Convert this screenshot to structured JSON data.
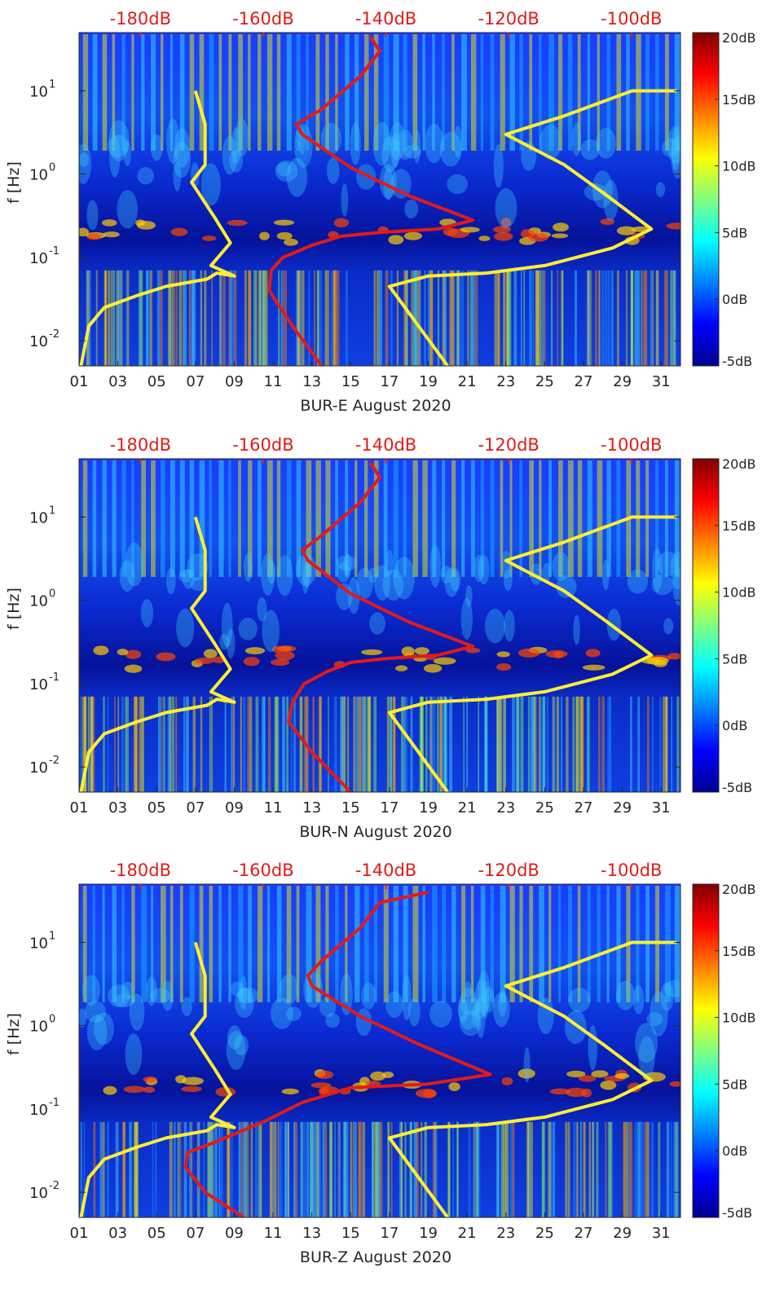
{
  "colors": {
    "background_low": "#00008f",
    "trace_yellow": "#ffee33",
    "trace_red": "#e01b1b",
    "top_label_red": "#e01b1b"
  },
  "chart_data": [
    {
      "type": "heatmap",
      "title": "",
      "xlabel": "BUR-E August 2020",
      "ylabel": "f [Hz]",
      "xlim": [
        1,
        32
      ],
      "ylim": [
        0.005,
        50
      ],
      "yscale": "log",
      "x_ticks": [
        "01",
        "03",
        "05",
        "07",
        "09",
        "11",
        "13",
        "15",
        "17",
        "19",
        "21",
        "23",
        "25",
        "27",
        "29",
        "31"
      ],
      "x_tick_values": [
        1,
        3,
        5,
        7,
        9,
        11,
        13,
        15,
        17,
        19,
        21,
        23,
        25,
        27,
        29,
        31
      ],
      "y_ticks": [
        {
          "label_base": "10",
          "label_exp": "1",
          "value": 10
        },
        {
          "label_base": "10",
          "label_exp": "0",
          "value": 1
        },
        {
          "label_base": "10",
          "label_exp": "-1",
          "value": 0.1
        },
        {
          "label_base": "10",
          "label_exp": "-2",
          "value": 0.01
        }
      ],
      "top_axis_ticks": [
        "-180dB",
        "-160dB",
        "-140dB",
        "-120dB",
        "-100dB"
      ],
      "top_axis_values": [
        -180,
        -160,
        -140,
        -120,
        -100
      ],
      "top_axis_lim": [
        -190,
        -92
      ],
      "colorbar": {
        "ticks": [
          "20dB",
          "15dB",
          "10dB",
          "5dB",
          "0dB",
          "-5dB"
        ],
        "values": [
          20,
          15,
          10,
          5,
          0,
          -5
        ],
        "clim": [
          -5,
          20
        ],
        "colormap": "jet"
      },
      "series": [
        {
          "name": "noise model low (yellow, left)",
          "color": "#ffee33",
          "x": [
            1.1,
            1.5,
            2.3,
            4.0,
            5.5,
            7.6,
            8.1,
            9.0,
            7.8,
            8.8,
            8.0,
            6.8,
            7.5,
            7.5,
            7.0
          ],
          "y": [
            0.005,
            0.015,
            0.025,
            0.035,
            0.045,
            0.055,
            0.065,
            0.06,
            0.08,
            0.15,
            0.3,
            0.8,
            1.3,
            4.0,
            10.0
          ]
        },
        {
          "name": "noise model high (yellow, right)",
          "color": "#ffee33",
          "x": [
            20.0,
            17.0,
            19.0,
            22.0,
            25.0,
            28.5,
            30.5,
            28.0,
            26.0,
            23.0,
            26.0,
            29.5,
            31.8
          ],
          "y": [
            0.005,
            0.045,
            0.06,
            0.065,
            0.08,
            0.13,
            0.22,
            0.6,
            1.3,
            3.0,
            5.0,
            10.0,
            10.0
          ]
        },
        {
          "name": "mean PSD (red)",
          "color": "#e01b1b",
          "x": [
            13.5,
            12.0,
            10.8,
            10.9,
            11.5,
            13.0,
            14.5,
            16.5,
            19.5,
            21.3,
            18.0,
            15.0,
            12.5,
            12.2,
            13.5,
            15.5,
            16.5,
            16.0
          ],
          "y": [
            0.005,
            0.015,
            0.04,
            0.07,
            0.1,
            0.14,
            0.18,
            0.2,
            0.22,
            0.28,
            0.55,
            1.2,
            3.0,
            4.0,
            6.0,
            15.0,
            30.0,
            45.0
          ]
        }
      ]
    },
    {
      "type": "heatmap",
      "title": "",
      "xlabel": "BUR-N August 2020",
      "ylabel": "f [Hz]",
      "xlim": [
        1,
        32
      ],
      "ylim": [
        0.005,
        50
      ],
      "yscale": "log",
      "x_ticks": [
        "01",
        "03",
        "05",
        "07",
        "09",
        "11",
        "13",
        "15",
        "17",
        "19",
        "21",
        "23",
        "25",
        "27",
        "29",
        "31"
      ],
      "x_tick_values": [
        1,
        3,
        5,
        7,
        9,
        11,
        13,
        15,
        17,
        19,
        21,
        23,
        25,
        27,
        29,
        31
      ],
      "y_ticks": [
        {
          "label_base": "10",
          "label_exp": "1",
          "value": 10
        },
        {
          "label_base": "10",
          "label_exp": "0",
          "value": 1
        },
        {
          "label_base": "10",
          "label_exp": "-1",
          "value": 0.1
        },
        {
          "label_base": "10",
          "label_exp": "-2",
          "value": 0.01
        }
      ],
      "top_axis_ticks": [
        "-180dB",
        "-160dB",
        "-140dB",
        "-120dB",
        "-100dB"
      ],
      "top_axis_values": [
        -180,
        -160,
        -140,
        -120,
        -100
      ],
      "top_axis_lim": [
        -190,
        -92
      ],
      "colorbar": {
        "ticks": [
          "20dB",
          "15dB",
          "10dB",
          "5dB",
          "0dB",
          "-5dB"
        ],
        "values": [
          20,
          15,
          10,
          5,
          0,
          -5
        ],
        "clim": [
          -5,
          20
        ],
        "colormap": "jet"
      },
      "series": [
        {
          "name": "noise model low (yellow, left)",
          "color": "#ffee33",
          "x": [
            1.1,
            1.5,
            2.3,
            4.0,
            5.5,
            7.6,
            8.1,
            9.0,
            7.8,
            8.8,
            8.0,
            6.8,
            7.5,
            7.5,
            7.0
          ],
          "y": [
            0.005,
            0.015,
            0.025,
            0.035,
            0.045,
            0.055,
            0.065,
            0.06,
            0.08,
            0.15,
            0.3,
            0.8,
            1.3,
            4.0,
            10.0
          ]
        },
        {
          "name": "noise model high (yellow, right)",
          "color": "#ffee33",
          "x": [
            20.0,
            17.0,
            19.0,
            22.0,
            25.0,
            28.5,
            30.5,
            28.0,
            26.0,
            23.0,
            26.0,
            29.5,
            31.8
          ],
          "y": [
            0.005,
            0.045,
            0.06,
            0.065,
            0.08,
            0.13,
            0.22,
            0.6,
            1.3,
            3.0,
            5.0,
            10.0,
            10.0
          ]
        },
        {
          "name": "mean PSD (red)",
          "color": "#e01b1b",
          "x": [
            15.0,
            13.0,
            11.8,
            12.0,
            12.6,
            13.8,
            15.0,
            16.8,
            19.5,
            21.3,
            18.0,
            15.0,
            12.8,
            12.5,
            13.5,
            15.5,
            16.5,
            16.0
          ],
          "y": [
            0.005,
            0.015,
            0.035,
            0.06,
            0.1,
            0.14,
            0.18,
            0.2,
            0.22,
            0.28,
            0.55,
            1.2,
            3.0,
            4.0,
            6.0,
            15.0,
            30.0,
            45.0
          ]
        }
      ]
    },
    {
      "type": "heatmap",
      "title": "",
      "xlabel": "BUR-Z August 2020",
      "ylabel": "f [Hz]",
      "xlim": [
        1,
        32
      ],
      "ylim": [
        0.005,
        50
      ],
      "yscale": "log",
      "x_ticks": [
        "01",
        "03",
        "05",
        "07",
        "09",
        "11",
        "13",
        "15",
        "17",
        "19",
        "21",
        "23",
        "25",
        "27",
        "29",
        "31"
      ],
      "x_tick_values": [
        1,
        3,
        5,
        7,
        9,
        11,
        13,
        15,
        17,
        19,
        21,
        23,
        25,
        27,
        29,
        31
      ],
      "y_ticks": [
        {
          "label_base": "10",
          "label_exp": "1",
          "value": 10
        },
        {
          "label_base": "10",
          "label_exp": "0",
          "value": 1
        },
        {
          "label_base": "10",
          "label_exp": "-1",
          "value": 0.1
        },
        {
          "label_base": "10",
          "label_exp": "-2",
          "value": 0.01
        }
      ],
      "top_axis_ticks": [
        "-180dB",
        "-160dB",
        "-140dB",
        "-120dB",
        "-100dB"
      ],
      "top_axis_values": [
        -180,
        -160,
        -140,
        -120,
        -100
      ],
      "top_axis_lim": [
        -190,
        -92
      ],
      "colorbar": {
        "ticks": [
          "20dB",
          "15dB",
          "10dB",
          "5dB",
          "0dB",
          "-5dB"
        ],
        "values": [
          20,
          15,
          10,
          5,
          0,
          -5
        ],
        "clim": [
          -5,
          20
        ],
        "colormap": "jet"
      },
      "series": [
        {
          "name": "noise model low (yellow, left)",
          "color": "#ffee33",
          "x": [
            1.1,
            1.5,
            2.3,
            4.0,
            5.5,
            7.6,
            8.1,
            9.0,
            7.8,
            8.8,
            8.0,
            6.8,
            7.5,
            7.5,
            7.0
          ],
          "y": [
            0.005,
            0.015,
            0.025,
            0.035,
            0.045,
            0.055,
            0.065,
            0.06,
            0.08,
            0.15,
            0.3,
            0.8,
            1.3,
            4.0,
            10.0
          ]
        },
        {
          "name": "noise model high (yellow, right)",
          "color": "#ffee33",
          "x": [
            20.0,
            17.0,
            19.0,
            22.0,
            25.0,
            28.5,
            30.5,
            28.0,
            26.0,
            23.0,
            26.0,
            29.5,
            31.8
          ],
          "y": [
            0.005,
            0.045,
            0.06,
            0.065,
            0.08,
            0.13,
            0.22,
            0.6,
            1.3,
            3.0,
            5.0,
            10.0,
            10.0
          ]
        },
        {
          "name": "mean PSD (red)",
          "color": "#e01b1b",
          "x": [
            9.5,
            7.5,
            6.5,
            6.6,
            8.0,
            10.5,
            12.5,
            15.0,
            19.0,
            22.2,
            18.5,
            15.5,
            13.0,
            12.8,
            13.5,
            15.5,
            16.5,
            19.0
          ],
          "y": [
            0.005,
            0.01,
            0.02,
            0.03,
            0.04,
            0.07,
            0.12,
            0.18,
            0.2,
            0.26,
            0.6,
            1.3,
            3.0,
            4.0,
            6.0,
            15.0,
            30.0,
            40.0
          ]
        }
      ]
    }
  ]
}
